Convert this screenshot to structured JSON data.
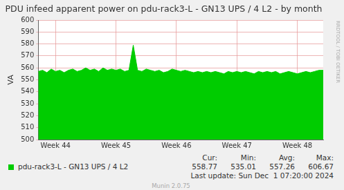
{
  "chart_data": {
    "type": "area",
    "title": "PDU infeed apparent power on pdu-rack3-L - GN13 UPS / 4 L2 - by month",
    "ylabel": "VA",
    "categories": [
      null,
      null,
      null,
      null,
      "Week 44",
      null,
      null,
      null,
      null,
      null,
      null,
      null,
      null,
      null,
      null,
      null,
      null,
      null,
      "Week 45",
      null,
      null,
      null,
      null,
      null,
      null,
      null,
      null,
      null,
      null,
      null,
      null,
      null,
      "Week 46",
      null,
      null,
      null,
      null,
      null,
      null,
      null,
      null,
      null,
      null,
      null,
      null,
      null,
      "Week 47",
      null,
      null,
      null,
      null,
      null,
      null,
      null,
      null,
      null,
      null,
      null,
      null,
      null,
      "Week 48",
      null,
      null,
      null,
      null,
      null,
      null
    ],
    "series": [
      {
        "name": "pdu-rack3-L - GN13 UPS / 4 L2",
        "color": "#00cc00",
        "values": [
          557,
          558,
          556,
          559,
          557,
          558,
          556,
          558,
          559,
          557,
          558,
          560,
          558,
          559,
          557,
          560,
          558,
          559,
          558,
          559,
          557,
          558,
          579,
          558,
          557,
          559,
          558,
          557,
          558,
          556,
          557,
          559,
          558,
          557,
          558,
          557,
          556,
          557,
          556,
          557,
          556,
          557,
          556,
          555,
          557,
          556,
          557,
          556,
          557,
          556,
          555,
          557,
          556,
          557,
          556,
          557,
          555,
          556,
          557,
          556,
          555,
          556,
          557,
          556,
          557,
          558,
          558
        ]
      }
    ],
    "ylim": [
      500,
      600
    ],
    "yticks": [
      500,
      510,
      520,
      530,
      540,
      550,
      560,
      570,
      580,
      590,
      600
    ],
    "grid": true,
    "stats": [
      {
        "label": "Cur:",
        "value": 558.77
      },
      {
        "label": "Min:",
        "value": 535.01
      },
      {
        "label": "Avg:",
        "value": 557.26
      },
      {
        "label": "Max:",
        "value": 606.67
      }
    ],
    "footer": "Last update: Sun Dec  1 07:20:00 2024",
    "credit": "Munin 2.0.75",
    "side_text": "RRDTOOL / TOBI OETIKER"
  }
}
